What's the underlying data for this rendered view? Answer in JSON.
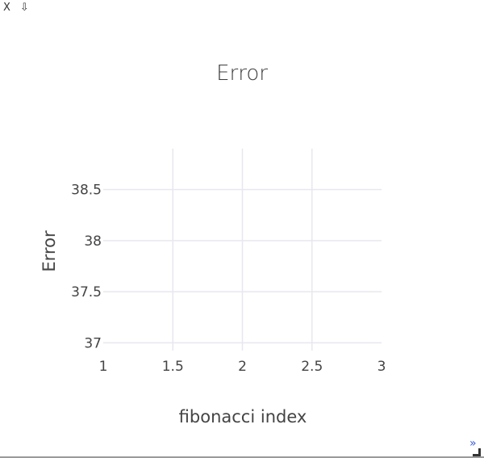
{
  "toolbar": {
    "close_label": "X",
    "download_label": "⇩"
  },
  "colors": {
    "grid": "#e7e7ef",
    "text": "#444444",
    "expand": "#3a5bd9"
  },
  "chart_data": {
    "type": "line",
    "title": "Error",
    "xlabel": "fibonacci index",
    "ylabel": "Error",
    "xlim": [
      1,
      3
    ],
    "ylim": [
      36.9,
      38.9
    ],
    "x_ticks": [
      1,
      1.5,
      2,
      2.5,
      3
    ],
    "x_tick_labels": [
      "1",
      "1.5",
      "2",
      "2.5",
      "3"
    ],
    "y_ticks": [
      37,
      37.5,
      38,
      38.5
    ],
    "y_tick_labels": [
      "37",
      "37.5",
      "38",
      "38.5"
    ],
    "grid": true,
    "series": []
  },
  "footer": {
    "expand_label": "»"
  }
}
